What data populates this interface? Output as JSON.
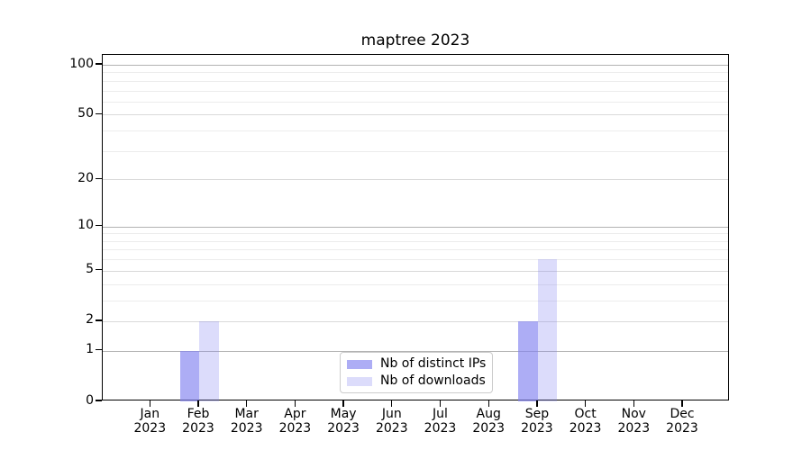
{
  "chart_data": {
    "type": "bar",
    "title": "maptree 2023",
    "categories": [
      "Jan 2023",
      "Feb 2023",
      "Mar 2023",
      "Apr 2023",
      "May 2023",
      "Jun 2023",
      "Jul 2023",
      "Aug 2023",
      "Sep 2023",
      "Oct 2023",
      "Nov 2023",
      "Dec 2023"
    ],
    "series": [
      {
        "name": "Nb of distinct IPs",
        "color": "rgba(130,130,240,0.66)",
        "values": [
          0,
          1,
          0,
          0,
          0,
          0,
          0,
          0,
          2,
          0,
          0,
          0
        ]
      },
      {
        "name": "Nb of downloads",
        "color": "rgba(130,130,240,0.28)",
        "values": [
          0,
          2,
          0,
          0,
          0,
          0,
          0,
          0,
          6,
          0,
          0,
          0
        ]
      }
    ],
    "xlabel": "",
    "ylabel": "",
    "y_axis": {
      "scale": "log1p",
      "tick_values": [
        0,
        1,
        2,
        5,
        10,
        20,
        50,
        100
      ],
      "decade_gridlines": [
        1,
        10,
        100
      ],
      "labeled_gridlines": [
        2,
        5,
        20,
        50
      ],
      "minor_gridlines": [
        3,
        4,
        6,
        7,
        8,
        9,
        30,
        40,
        60,
        70,
        80,
        90
      ],
      "ylim": [
        0,
        114.7
      ]
    },
    "grid": true,
    "legend_position": "lower center"
  },
  "colors": {
    "background": "#ffffff",
    "spine": "#000000",
    "text": "#000000",
    "grid_decade": "#b3b3b3",
    "grid_labeled": "#d9d9d9",
    "grid_minor": "#ececec",
    "legend_border": "#cccccc"
  }
}
